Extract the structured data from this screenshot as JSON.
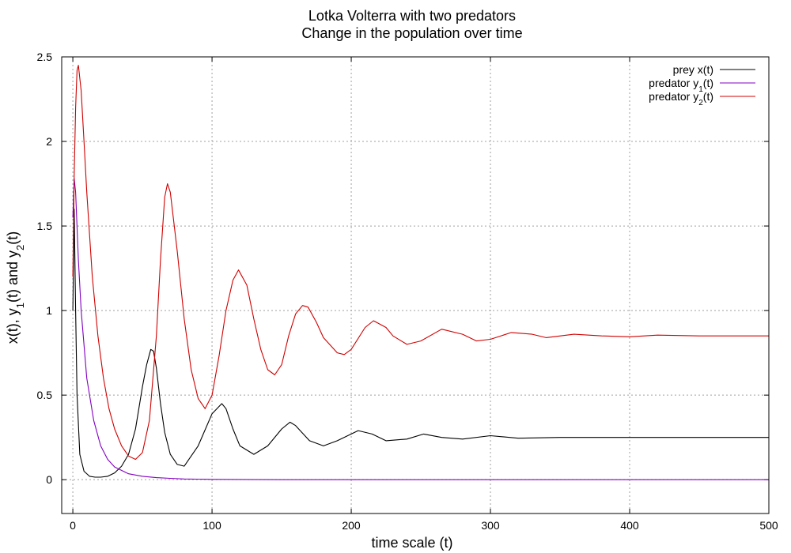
{
  "chart_data": {
    "type": "line",
    "title": "Lotka Volterra with two predators",
    "subtitle": "Change in the population over time",
    "xlabel": "time scale (t)",
    "ylabel_parts": [
      "x(t), y",
      "1",
      "(t) and y",
      "2",
      "(t)"
    ],
    "xlim": [
      -8,
      500
    ],
    "ylim": [
      -0.2,
      2.5
    ],
    "xticks": [
      0,
      100,
      200,
      300,
      400,
      500
    ],
    "xtick_labels": [
      "0",
      "100",
      "200",
      "300",
      "400",
      "500"
    ],
    "yticks": [
      0,
      0.5,
      1,
      1.5,
      2,
      2.5
    ],
    "ytick_labels": [
      "0",
      "0.5",
      "1",
      "1.5",
      "2",
      "2.5"
    ],
    "grid": true,
    "legend_position": "top-right",
    "series": [
      {
        "legend_parts": [
          "prey x(t)"
        ],
        "color": "#000000",
        "x": [
          0,
          1,
          2,
          3,
          5,
          8,
          12,
          16,
          20,
          25,
          30,
          35,
          40,
          45,
          50,
          53,
          56,
          58,
          60,
          63,
          66,
          70,
          75,
          80,
          90,
          100,
          107,
          110,
          115,
          120,
          130,
          140,
          150,
          156,
          160,
          170,
          180,
          190,
          205,
          215,
          225,
          240,
          252,
          265,
          280,
          300,
          320,
          350,
          400,
          450,
          500
        ],
        "y": [
          1.0,
          1.6,
          1.0,
          0.5,
          0.15,
          0.05,
          0.02,
          0.015,
          0.015,
          0.02,
          0.04,
          0.08,
          0.15,
          0.3,
          0.55,
          0.68,
          0.77,
          0.76,
          0.66,
          0.45,
          0.28,
          0.15,
          0.09,
          0.08,
          0.2,
          0.39,
          0.45,
          0.42,
          0.3,
          0.2,
          0.15,
          0.2,
          0.3,
          0.34,
          0.32,
          0.23,
          0.2,
          0.23,
          0.29,
          0.27,
          0.23,
          0.24,
          0.27,
          0.25,
          0.24,
          0.26,
          0.245,
          0.25,
          0.25,
          0.25,
          0.25
        ]
      },
      {
        "legend_parts": [
          "predator y",
          "1",
          "(t)"
        ],
        "color": "#8000c0",
        "x": [
          0,
          1,
          2,
          4,
          6,
          10,
          15,
          20,
          25,
          30,
          40,
          50,
          60,
          70,
          80,
          100,
          150,
          200,
          300,
          400,
          500
        ],
        "y": [
          1.55,
          1.78,
          1.7,
          1.3,
          1.0,
          0.6,
          0.35,
          0.2,
          0.12,
          0.075,
          0.035,
          0.02,
          0.012,
          0.008,
          0.004,
          0.002,
          0.0,
          0.0,
          0.0,
          0.0,
          0.0
        ]
      },
      {
        "legend_parts": [
          "predator y",
          "2",
          "(t)"
        ],
        "color": "#d00000",
        "x": [
          0,
          1,
          2,
          3,
          4,
          6,
          8,
          10,
          14,
          18,
          22,
          26,
          30,
          35,
          40,
          45,
          50,
          55,
          60,
          63,
          66,
          68,
          70,
          75,
          80,
          85,
          90,
          95,
          100,
          105,
          110,
          115,
          119,
          125,
          130,
          135,
          140,
          145,
          150,
          155,
          160,
          165,
          169,
          175,
          180,
          190,
          195,
          200,
          210,
          216,
          225,
          230,
          240,
          250,
          265,
          280,
          290,
          300,
          315,
          330,
          340,
          360,
          380,
          400,
          420,
          450,
          480,
          500
        ],
        "y": [
          1.2,
          1.8,
          2.2,
          2.42,
          2.45,
          2.3,
          2.0,
          1.7,
          1.2,
          0.85,
          0.6,
          0.42,
          0.3,
          0.2,
          0.14,
          0.12,
          0.16,
          0.35,
          0.85,
          1.3,
          1.67,
          1.75,
          1.7,
          1.35,
          0.95,
          0.65,
          0.48,
          0.42,
          0.5,
          0.73,
          1.0,
          1.18,
          1.24,
          1.15,
          0.95,
          0.77,
          0.65,
          0.62,
          0.68,
          0.85,
          0.98,
          1.03,
          1.02,
          0.93,
          0.84,
          0.75,
          0.74,
          0.77,
          0.9,
          0.94,
          0.9,
          0.85,
          0.8,
          0.82,
          0.89,
          0.86,
          0.82,
          0.83,
          0.87,
          0.86,
          0.84,
          0.86,
          0.85,
          0.845,
          0.855,
          0.85,
          0.85,
          0.85
        ]
      }
    ]
  }
}
